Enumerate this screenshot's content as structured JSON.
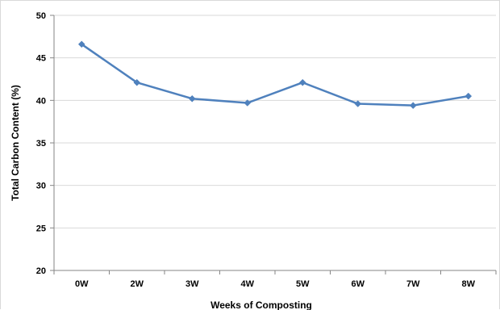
{
  "chart_data": {
    "type": "line",
    "title": "",
    "xlabel": "Weeks of Composting",
    "ylabel": "Total Carbon Content (%)",
    "categories": [
      "0W",
      "2W",
      "3W",
      "4W",
      "5W",
      "6W",
      "7W",
      "8W"
    ],
    "series": [
      {
        "values": [
          46.6,
          42.1,
          40.2,
          39.7,
          42.1,
          39.6,
          39.4,
          40.5
        ]
      }
    ],
    "ylim": [
      20,
      50
    ],
    "yticks": [
      20,
      25,
      30,
      35,
      40,
      45,
      50
    ],
    "grid": true,
    "legend": "none",
    "colors": {
      "line": "#4f81bd",
      "marker": "#4f81bd",
      "grid": "#d9d9d9",
      "axis": "#868686"
    },
    "marker": "diamond-icon"
  }
}
